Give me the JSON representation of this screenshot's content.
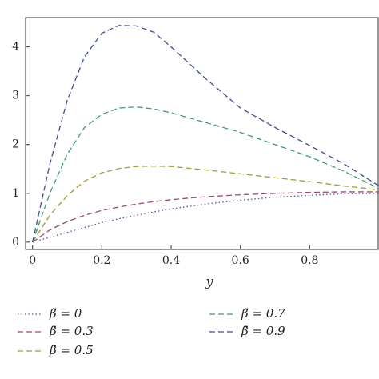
{
  "chart_data": {
    "type": "line",
    "x_label": "y",
    "x": [
      0,
      0.05,
      0.1,
      0.15,
      0.2,
      0.25,
      0.3,
      0.35,
      0.4,
      0.5,
      0.6,
      0.7,
      0.8,
      0.9,
      1
    ],
    "series": [
      {
        "name": "β̃ = 0",
        "color": "#5b4f8f",
        "dash": "1.5 3",
        "values": [
          0,
          0.1,
          0.2,
          0.3,
          0.4,
          0.48,
          0.55,
          0.62,
          0.68,
          0.78,
          0.86,
          0.92,
          0.96,
          0.99,
          1.0
        ]
      },
      {
        "name": "β̃ = 0.3",
        "color": "#a3467a",
        "dash": "7 4",
        "values": [
          0,
          0.25,
          0.42,
          0.55,
          0.65,
          0.72,
          0.78,
          0.83,
          0.87,
          0.93,
          0.97,
          1.0,
          1.02,
          1.03,
          1.03
        ]
      },
      {
        "name": "β̃ = 0.5",
        "color": "#a49c35",
        "dash": "7 4",
        "values": [
          0,
          0.55,
          0.95,
          1.25,
          1.42,
          1.51,
          1.55,
          1.56,
          1.55,
          1.48,
          1.4,
          1.32,
          1.24,
          1.15,
          1.07
        ]
      },
      {
        "name": "β̃ = 0.7",
        "color": "#3d9e72",
        "dash": "7 4",
        "values": [
          0,
          1.0,
          1.8,
          2.35,
          2.62,
          2.75,
          2.77,
          2.73,
          2.65,
          2.45,
          2.25,
          2.0,
          1.75,
          1.45,
          1.1
        ]
      },
      {
        "name": "β̃ = 0.9",
        "color": "#3f4c97",
        "dash": "7 4",
        "values": [
          0,
          1.6,
          2.9,
          3.8,
          4.28,
          4.44,
          4.43,
          4.3,
          4.0,
          3.35,
          2.75,
          2.35,
          1.98,
          1.6,
          1.15
        ]
      }
    ],
    "xlim": [
      -0.02,
      1
    ],
    "ylim": [
      -0.15,
      4.6
    ],
    "xticks": [
      0,
      0.2,
      0.4,
      0.6,
      0.8
    ],
    "yticks": [
      0,
      1,
      2,
      3,
      4
    ]
  }
}
